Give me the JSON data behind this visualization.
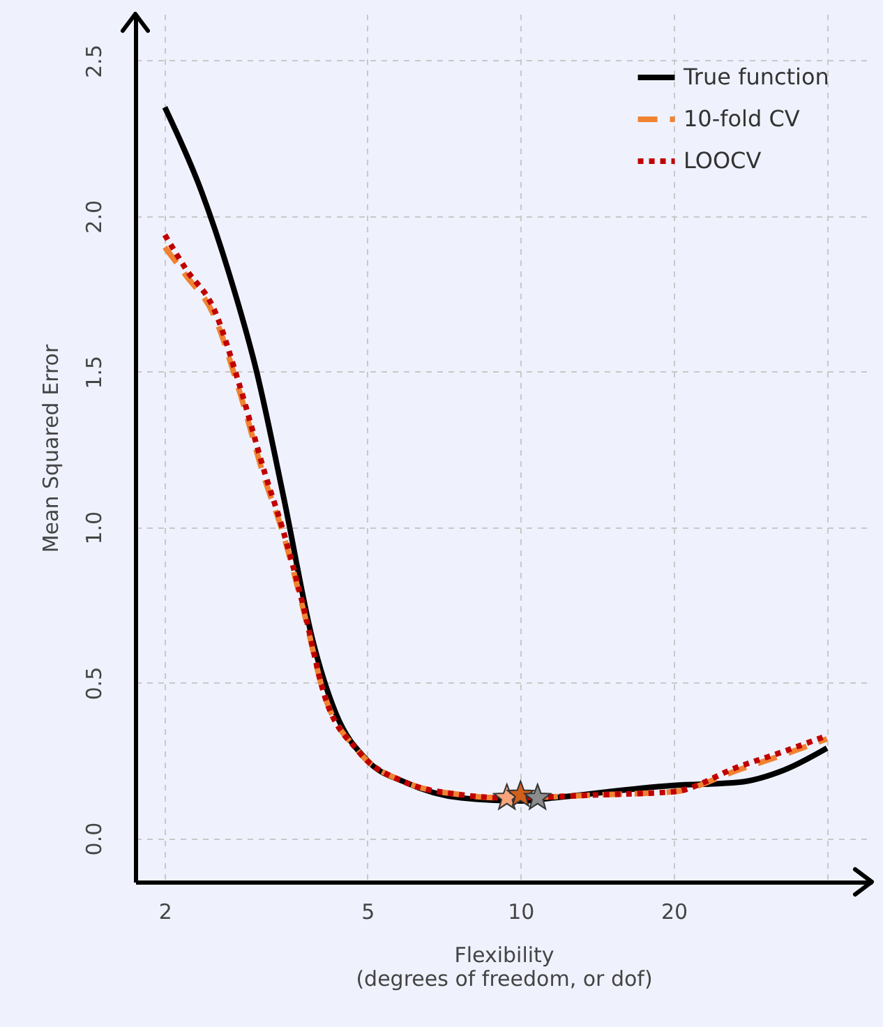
{
  "chart_data": {
    "type": "line",
    "xlabel": "Flexibility\n(degrees of freedom, or dof)",
    "ylabel": "Mean Squared Error",
    "log": "x",
    "xlim": [
      1.75,
      49
    ],
    "xticks": [
      2,
      5,
      10,
      20,
      {
        "value": 40,
        "label": null
      }
    ],
    "ylim": [
      -0.14,
      2.65
    ],
    "yticks": [
      {
        "value": 0,
        "label": "0.0"
      },
      0.5,
      {
        "value": 1,
        "label": "1.0"
      },
      1.5,
      {
        "value": 2,
        "label": "2.0"
      },
      2.5
    ],
    "grid": true,
    "legend": "top right",
    "series": [
      {
        "name": "True function",
        "color": "#000000",
        "line_style": "solid",
        "x": [
          2,
          2.36,
          2.67,
          3.03,
          3.43,
          3.9,
          4.34,
          5,
          5.94,
          7.64,
          10,
          11.6,
          20,
          26.8,
          33,
          40
        ],
        "values": [
          2.35,
          2.08,
          1.82,
          1.5,
          1.09,
          0.64,
          0.4,
          0.25,
          0.18,
          0.13,
          0.12,
          0.13,
          0.17,
          0.18,
          0.22,
          0.29
        ]
      },
      {
        "name": "10-fold CV",
        "color": "#f08232",
        "line_style": "dashed",
        "x": [
          2,
          2.2,
          2.5,
          2.8,
          3.15,
          3.4,
          3.75,
          4.1,
          4.8,
          5.94,
          7.64,
          9.3,
          14.3,
          20,
          26.8,
          33,
          40
        ],
        "values": [
          1.9,
          1.81,
          1.68,
          1.44,
          1.15,
          0.99,
          0.73,
          0.47,
          0.28,
          0.18,
          0.14,
          0.13,
          0.14,
          0.15,
          0.22,
          0.27,
          0.32
        ]
      },
      {
        "name": "LOOCV",
        "color": "#c00000",
        "line_style": "dotted",
        "x": [
          2,
          2.2,
          2.5,
          2.8,
          3.15,
          3.4,
          3.75,
          4.1,
          4.8,
          5.94,
          7.64,
          9.3,
          14.3,
          20,
          26.8,
          33,
          40
        ],
        "values": [
          1.94,
          1.83,
          1.7,
          1.46,
          1.17,
          1.0,
          0.74,
          0.47,
          0.28,
          0.18,
          0.14,
          0.13,
          0.14,
          0.15,
          0.23,
          0.28,
          0.33
        ]
      },
      {
        "type": "scatter",
        "marker": "star",
        "color": "#f7a47a",
        "x": [
          9.4
        ],
        "values": [
          0.13
        ]
      },
      {
        "type": "scatter",
        "marker": "star",
        "color": "#d2601a",
        "x": [
          10
        ],
        "values": [
          0.14
        ]
      },
      {
        "type": "scatter",
        "marker": "star",
        "color": "#8c8c8c",
        "x": [
          10.8
        ],
        "values": [
          0.13
        ]
      }
    ]
  }
}
